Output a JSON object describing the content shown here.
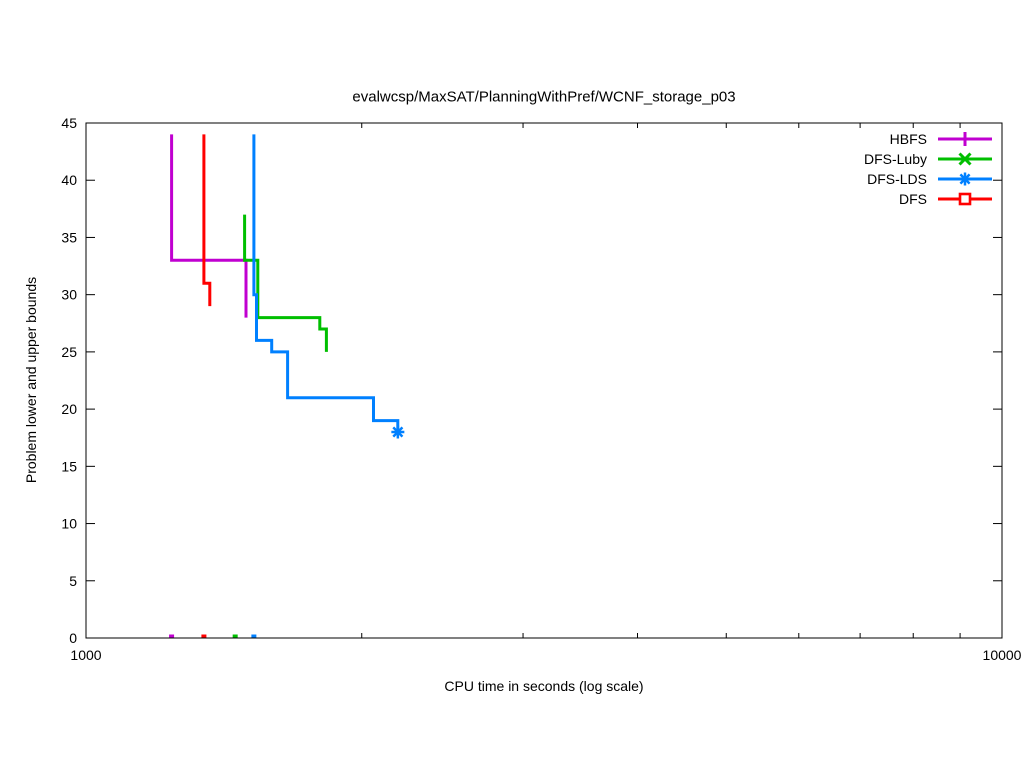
{
  "chart_data": {
    "type": "line",
    "subtype": "steps",
    "title": "evalwcsp/MaxSAT/PlanningWithPref/WCNF_storage_p03",
    "xlabel": "CPU time in seconds (log scale)",
    "ylabel": "Problem lower and upper bounds",
    "x_scale": "log10",
    "xlim": [
      1000,
      10000
    ],
    "ylim": [
      0,
      45
    ],
    "grid": false,
    "legend_position": "top-right-inside",
    "x_ticks": [
      {
        "v": 1000,
        "label": "1000"
      },
      {
        "v": 10000,
        "label": "10000"
      }
    ],
    "x_minor_ticks": [
      2000,
      3000,
      4000,
      5000,
      6000,
      7000,
      8000,
      9000
    ],
    "y_ticks": [
      0,
      5,
      10,
      15,
      20,
      25,
      30,
      35,
      40,
      45
    ],
    "series": [
      {
        "name": "HBFS",
        "color": "#C000D0",
        "marker": "plus",
        "end_marker": false,
        "points": [
          [
            1240,
            44
          ],
          [
            1240,
            33
          ],
          [
            1495,
            33
          ],
          [
            1495,
            28
          ]
        ],
        "lower_bound_point": [
          1240,
          0
        ]
      },
      {
        "name": "DFS-Luby",
        "color": "#00BF00",
        "marker": "x",
        "end_marker": false,
        "points": [
          [
            1490,
            37
          ],
          [
            1490,
            33
          ],
          [
            1540,
            33
          ],
          [
            1540,
            28
          ],
          [
            1800,
            28
          ],
          [
            1800,
            27
          ],
          [
            1830,
            27
          ],
          [
            1830,
            25
          ]
        ],
        "lower_bound_point": [
          1455,
          0
        ]
      },
      {
        "name": "DFS-LDS",
        "color": "#0080FF",
        "marker": "asterisk",
        "end_marker": true,
        "points": [
          [
            1525,
            44
          ],
          [
            1525,
            30
          ],
          [
            1535,
            30
          ],
          [
            1535,
            26
          ],
          [
            1595,
            26
          ],
          [
            1595,
            25
          ],
          [
            1660,
            25
          ],
          [
            1660,
            21
          ],
          [
            2060,
            21
          ],
          [
            2060,
            19
          ],
          [
            2190,
            19
          ],
          [
            2190,
            18
          ]
        ],
        "lower_bound_point": [
          1525,
          0
        ]
      },
      {
        "name": "DFS",
        "color": "#FF0000",
        "marker": "square",
        "end_marker": false,
        "points": [
          [
            1345,
            44
          ],
          [
            1345,
            31
          ],
          [
            1365,
            31
          ],
          [
            1365,
            29
          ]
        ],
        "lower_bound_point": [
          1345,
          0
        ]
      }
    ]
  }
}
